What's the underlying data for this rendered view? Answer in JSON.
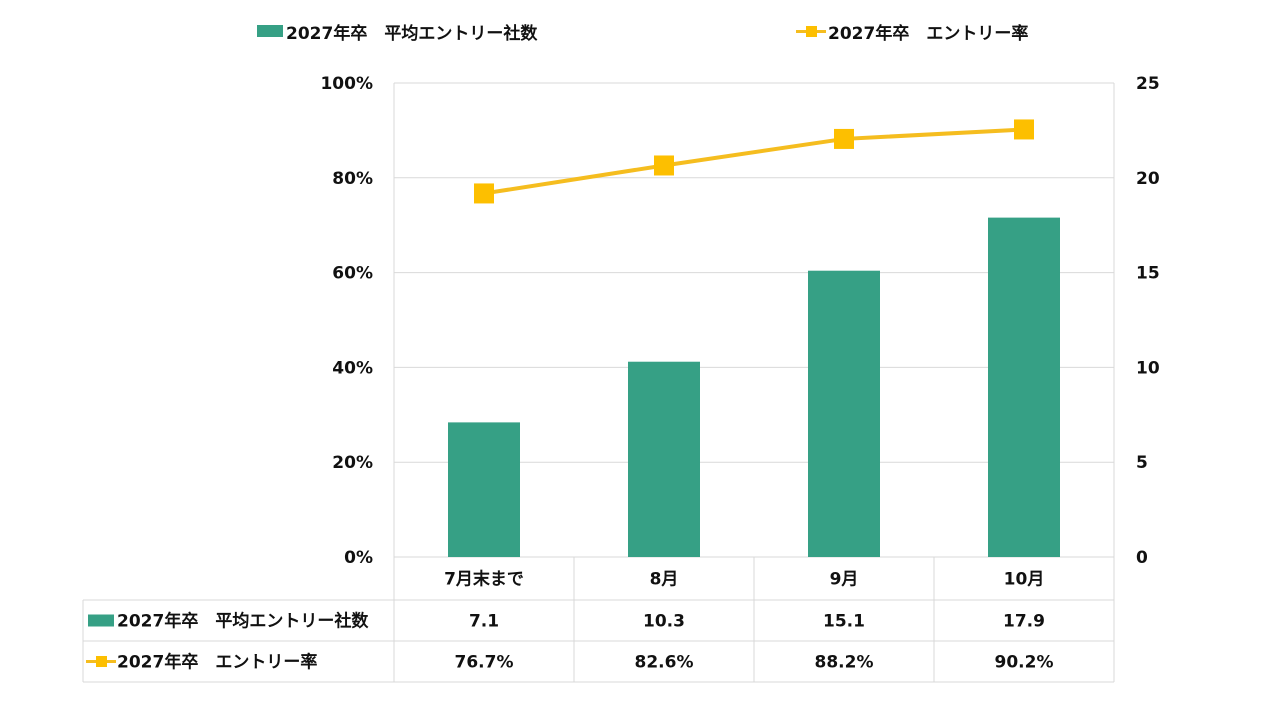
{
  "chart_data": {
    "type": "bar",
    "categories": [
      "7月末まで",
      "8月",
      "9月",
      "10月"
    ],
    "series": [
      {
        "name": "2027年卒　平均エントリー社数",
        "type": "bar",
        "axis": "right",
        "color": "#36a085",
        "values": [
          7.1,
          10.3,
          15.1,
          17.9
        ],
        "labels": [
          "7.1",
          "10.3",
          "15.1",
          "17.9"
        ]
      },
      {
        "name": "2027年卒　エントリー率",
        "type": "line",
        "axis": "left",
        "color": "#fdbf00",
        "values": [
          76.7,
          82.6,
          88.2,
          90.2
        ],
        "labels": [
          "76.7%",
          "82.6%",
          "88.2%",
          "90.2%"
        ]
      }
    ],
    "y_left": {
      "ylim": [
        0,
        100
      ],
      "ticks": [
        "0%",
        "20%",
        "40%",
        "60%",
        "80%",
        "100%"
      ],
      "tick_values": [
        0,
        20,
        40,
        60,
        80,
        100
      ]
    },
    "y_right": {
      "ylim": [
        0,
        25
      ],
      "ticks": [
        "0",
        "5",
        "10",
        "15",
        "20",
        "25"
      ],
      "tick_values": [
        0,
        5,
        10,
        15,
        20,
        25
      ]
    },
    "grid": true,
    "legend_placement": "top",
    "data_table": true
  },
  "legend": {
    "bar_label": "2027年卒　平均エントリー社数",
    "line_label": "2027年卒　エントリー率"
  }
}
